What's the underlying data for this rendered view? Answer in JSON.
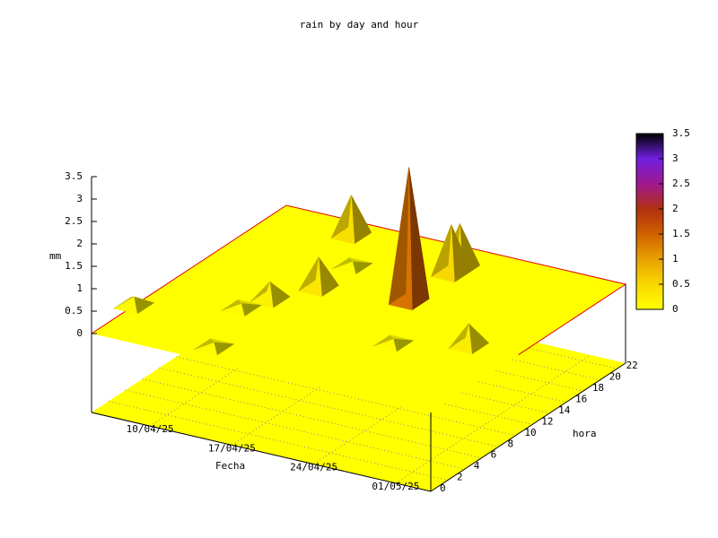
{
  "chart_data": {
    "type": "surface3d",
    "title": "rain by day and hour",
    "x_label": "Fecha",
    "y_label": "hora",
    "z_label": "mm",
    "x": [
      "22/04/25",
      "12/04/25",
      "22/04/25",
      "22/04/25",
      "15/04/25",
      "13/04/25",
      "30/04/25",
      "05/04/25",
      "12/04/25",
      "25/04/25",
      "14/04/25",
      "15/04/25"
    ],
    "y": [
      14,
      21,
      19,
      20,
      13,
      10,
      10,
      5,
      8,
      8,
      2,
      17
    ],
    "z": [
      3.0,
      0.9,
      1.1,
      1.0,
      0.7,
      0.4,
      0.5,
      0.2,
      0.1,
      0.1,
      0.1,
      0.1
    ],
    "xlim": [
      "05/04/25",
      "04/05/25"
    ],
    "xticks": [
      "10/04/25",
      "17/04/25",
      "24/04/25",
      "01/05/25"
    ],
    "ylim": [
      0,
      23
    ],
    "yticks": [
      0,
      2,
      4,
      6,
      8,
      10,
      12,
      14,
      16,
      18,
      20,
      22
    ],
    "zlim": [
      0,
      3.5
    ],
    "zticks": [
      0,
      0.5,
      1,
      1.5,
      2,
      2.5,
      3,
      3.5
    ],
    "cblim": [
      0,
      3.5
    ],
    "cbticks": [
      0,
      0.5,
      1,
      1.5,
      2,
      2.5,
      3,
      3.5
    ],
    "palette": [
      "#ffff00",
      "#f8d800",
      "#e8a000",
      "#d06000",
      "#b03010",
      "#a01890",
      "#7020e0",
      "#000000"
    ],
    "grid": true
  }
}
